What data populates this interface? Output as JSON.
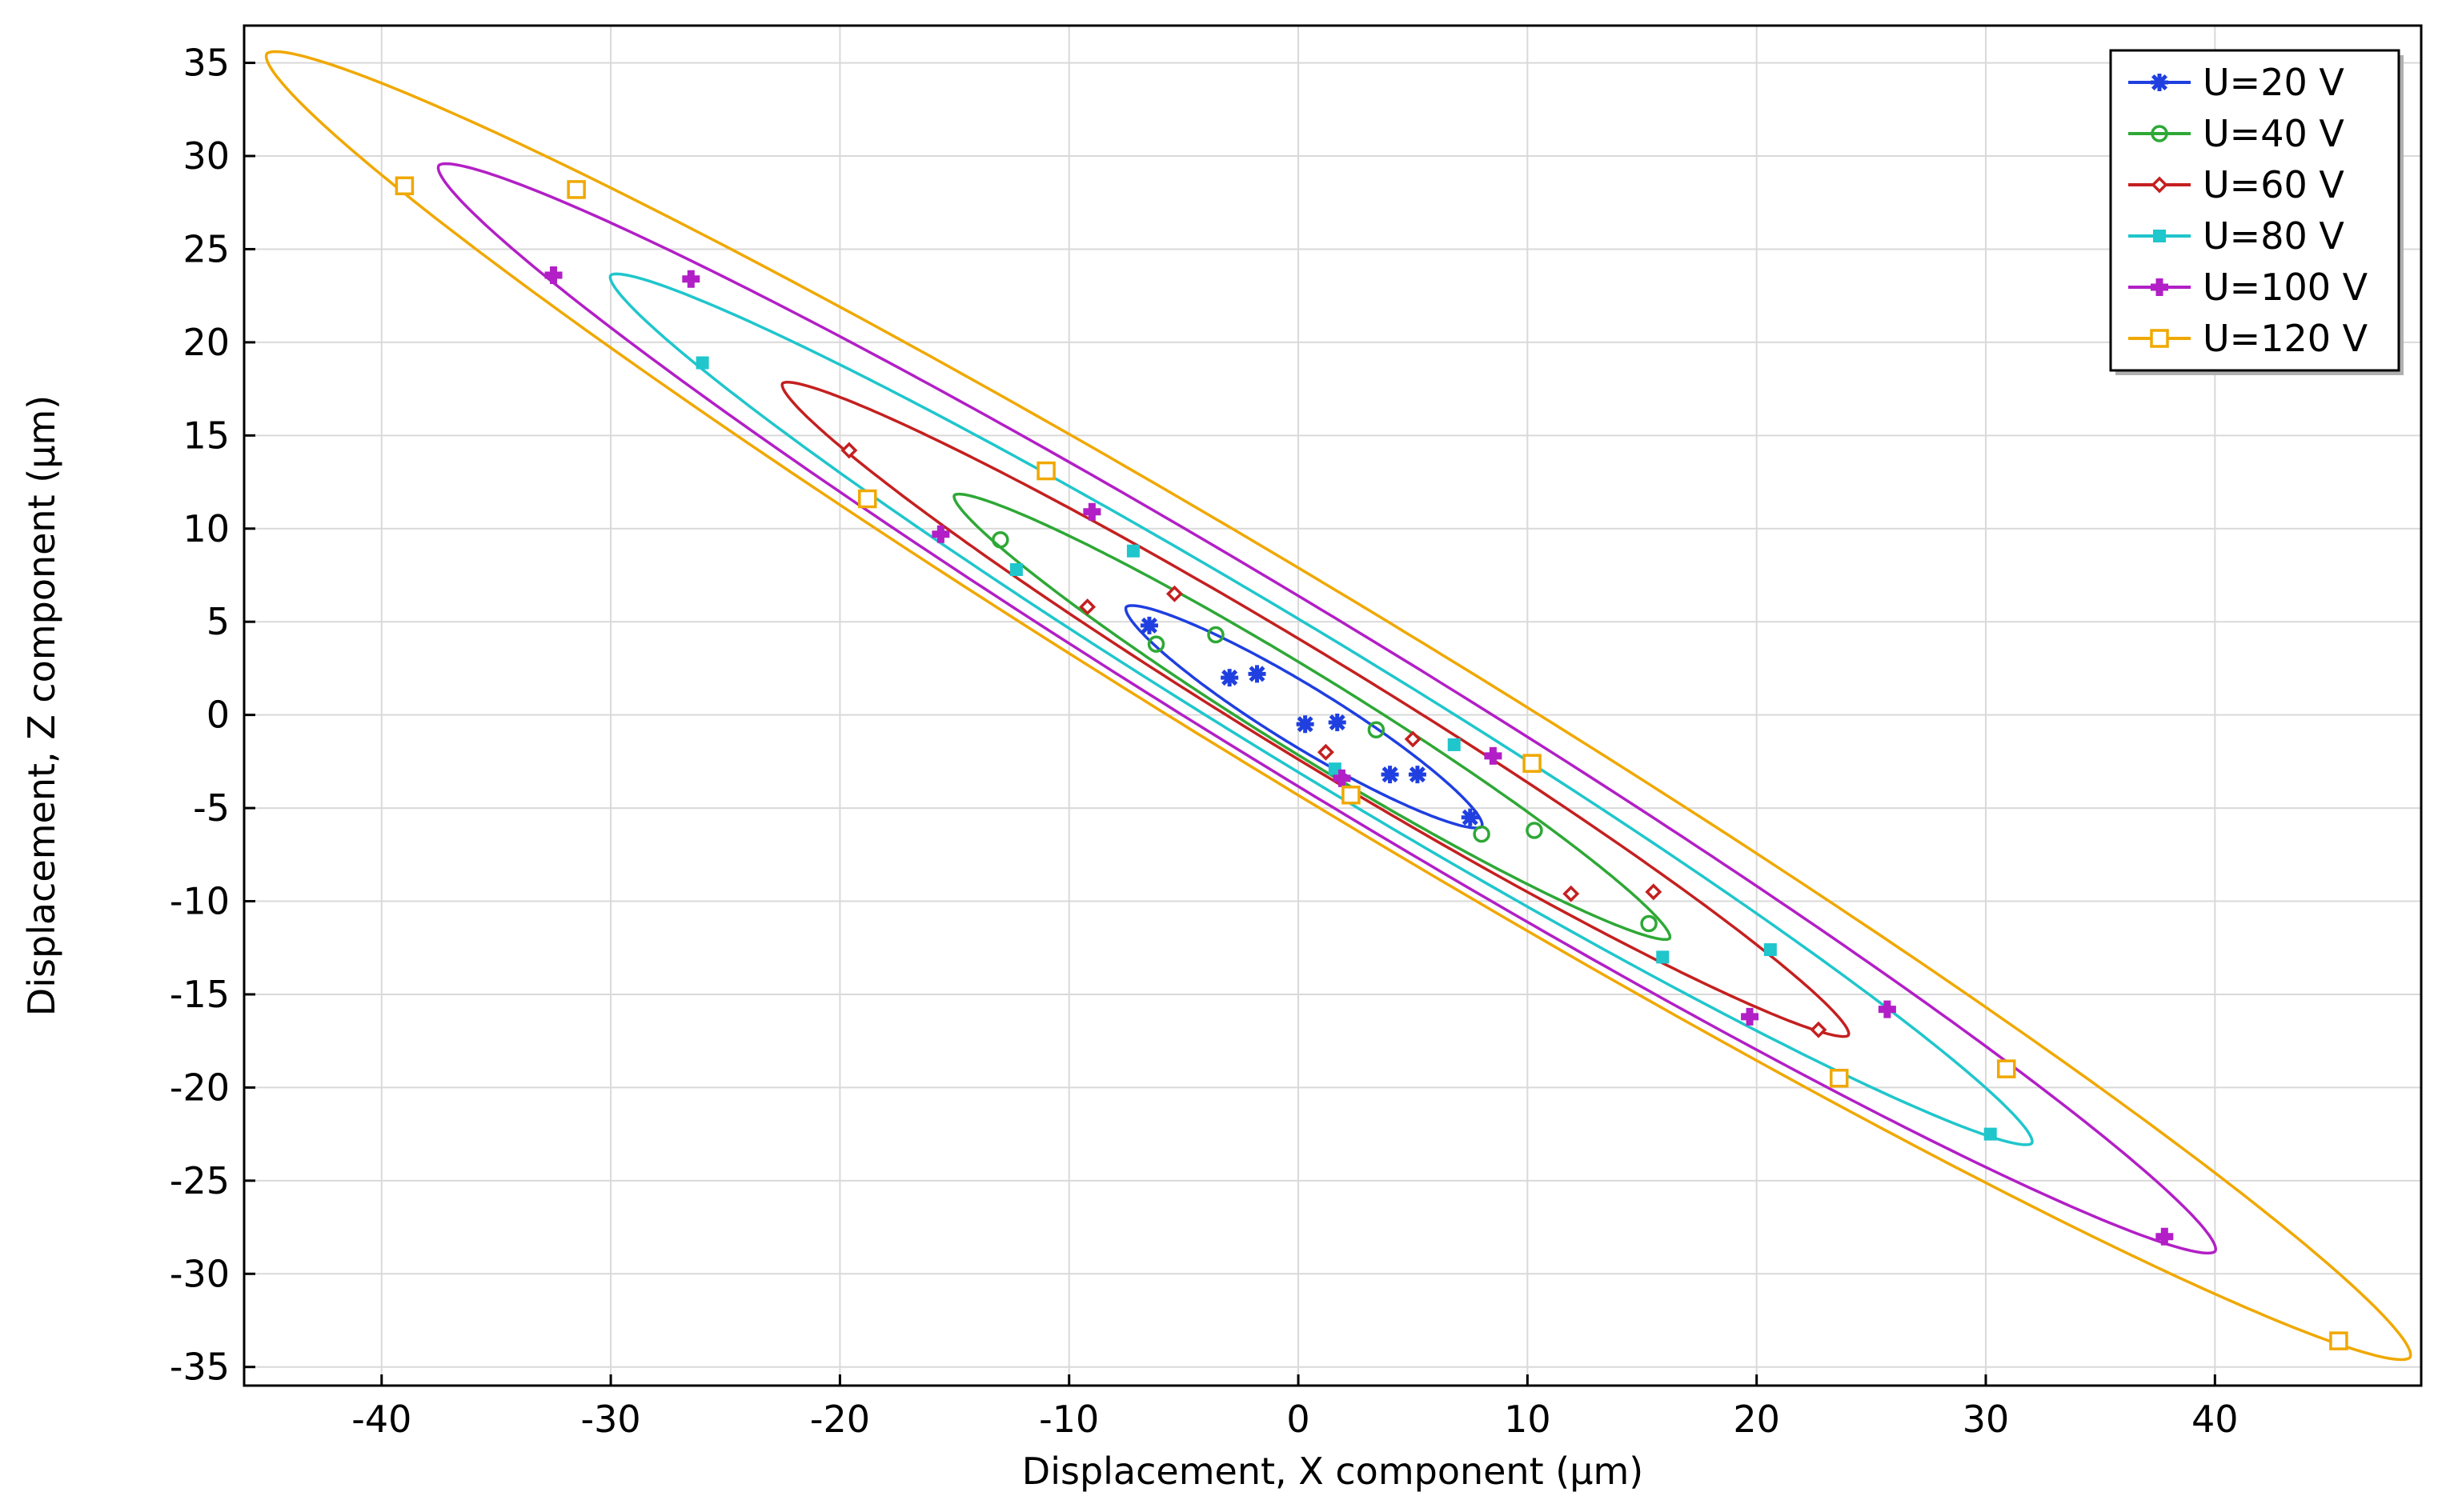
{
  "chart_data": {
    "type": "line",
    "title": "",
    "xlabel": "Displacement, X component (µm)",
    "ylabel": "Displacement, Z component (µm)",
    "xlim": [
      -46,
      49
    ],
    "ylim": [
      -36,
      37
    ],
    "xticks": [
      -40,
      -30,
      -20,
      -10,
      0,
      10,
      20,
      30,
      40
    ],
    "yticks": [
      35,
      30,
      25,
      20,
      15,
      10,
      5,
      0,
      -5,
      -10,
      -15,
      -20,
      -25,
      -30,
      -35
    ],
    "grid": true,
    "legend_position": "top-right",
    "series": [
      {
        "name": "U=20 V",
        "color": "#1f3fe0",
        "marker": "star",
        "tip_a": [
          -7.5,
          5.8
        ],
        "tip_b": [
          8.0,
          -6.0
        ],
        "half_width": 1.5,
        "markers": [
          [
            -6.5,
            4.8
          ],
          [
            -3.0,
            2.0
          ],
          [
            -1.8,
            2.2
          ],
          [
            0.3,
            -0.5
          ],
          [
            1.7,
            -0.4
          ],
          [
            4.0,
            -3.2
          ],
          [
            5.2,
            -3.2
          ],
          [
            7.5,
            -5.5
          ]
        ]
      },
      {
        "name": "U=40 V",
        "color": "#2ea836",
        "marker": "circle",
        "tip_a": [
          -15.0,
          11.8
        ],
        "tip_b": [
          16.2,
          -12.0
        ],
        "half_width": 2.0,
        "markers": [
          [
            -13.0,
            9.4
          ],
          [
            -6.2,
            3.8
          ],
          [
            -3.6,
            4.3
          ],
          [
            3.4,
            -0.8
          ],
          [
            8.0,
            -6.4
          ],
          [
            10.3,
            -6.2
          ],
          [
            15.3,
            -11.2
          ]
        ]
      },
      {
        "name": "U=60 V",
        "color": "#c42020",
        "marker": "diamond",
        "tip_a": [
          -22.5,
          17.8
        ],
        "tip_b": [
          24.0,
          -17.2
        ],
        "half_width": 2.6,
        "markers": [
          [
            -19.6,
            14.2
          ],
          [
            -9.2,
            5.8
          ],
          [
            -5.4,
            6.5
          ],
          [
            1.2,
            -2.0
          ],
          [
            5.0,
            -1.3
          ],
          [
            11.9,
            -9.6
          ],
          [
            15.5,
            -9.5
          ],
          [
            22.7,
            -16.9
          ]
        ]
      },
      {
        "name": "U=80 V",
        "color": "#1fc6cc",
        "marker": "square",
        "tip_a": [
          -30.0,
          23.6
        ],
        "tip_b": [
          32.0,
          -23.0
        ],
        "half_width": 3.3,
        "markers": [
          [
            -26.0,
            18.9
          ],
          [
            -12.3,
            7.8
          ],
          [
            -7.2,
            8.8
          ],
          [
            1.6,
            -2.9
          ],
          [
            6.8,
            -1.6
          ],
          [
            15.9,
            -13.0
          ],
          [
            20.6,
            -12.6
          ],
          [
            30.2,
            -22.5
          ]
        ]
      },
      {
        "name": "U=100 V",
        "color": "#b21fc6",
        "marker": "plus",
        "tip_a": [
          -37.5,
          29.5
        ],
        "tip_b": [
          40.0,
          -28.8
        ],
        "half_width": 4.1,
        "markers": [
          [
            -32.5,
            23.6
          ],
          [
            -26.5,
            23.4
          ],
          [
            -15.6,
            9.7
          ],
          [
            -9.0,
            10.9
          ],
          [
            1.9,
            -3.4
          ],
          [
            8.5,
            -2.2
          ],
          [
            19.7,
            -16.2
          ],
          [
            25.7,
            -15.8
          ],
          [
            37.8,
            -28.0
          ]
        ]
      },
      {
        "name": "U=120 V",
        "color": "#f0a800",
        "marker": "square-open",
        "tip_a": [
          -45.0,
          35.5
        ],
        "tip_b": [
          48.5,
          -34.5
        ],
        "half_width": 4.9,
        "markers": [
          [
            -39.0,
            28.4
          ],
          [
            -31.5,
            28.2
          ],
          [
            -18.8,
            11.6
          ],
          [
            -11.0,
            13.1
          ],
          [
            2.3,
            -4.3
          ],
          [
            10.2,
            -2.6
          ],
          [
            23.6,
            -19.5
          ],
          [
            30.9,
            -19.0
          ],
          [
            45.4,
            -33.6
          ]
        ]
      }
    ]
  }
}
